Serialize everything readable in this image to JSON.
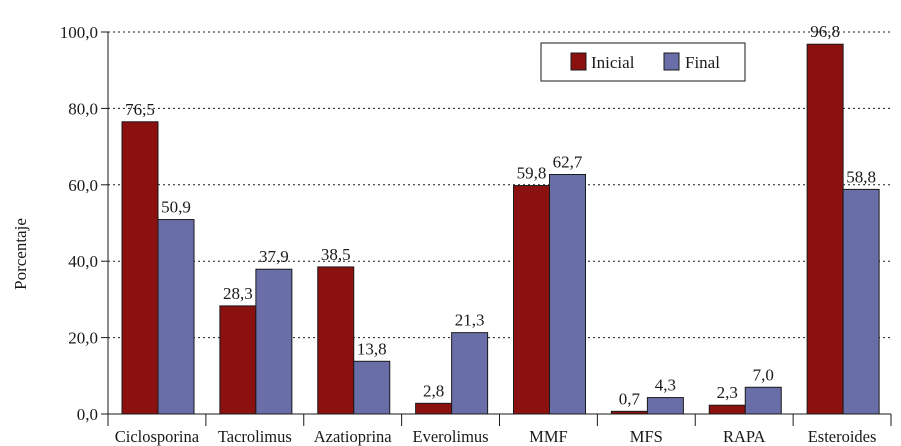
{
  "chart_data": {
    "type": "bar",
    "title": "",
    "xlabel": "",
    "ylabel": "Porcentaje",
    "ylim": [
      0,
      100
    ],
    "yticks": [
      "0,0",
      "20,0",
      "40,0",
      "60,0",
      "80,0",
      "100,0"
    ],
    "grid": "horizontal dotted",
    "legend_position": "top-right",
    "categories": [
      "Ciclosporina",
      "Tacrolimus",
      "Azatioprina",
      "Everolimus",
      "MMF",
      "MFS",
      "RAPA",
      "Esteroides"
    ],
    "series": [
      {
        "name": "Inicial",
        "color": "#8b1010",
        "values": [
          76.5,
          28.3,
          38.5,
          2.8,
          59.8,
          0.7,
          2.3,
          96.8
        ],
        "labels": [
          "76,5",
          "28,3",
          "38,5",
          "2,8",
          "59,8",
          "0,7",
          "2,3",
          "96,8"
        ]
      },
      {
        "name": "Final",
        "color": "#6a6ea8",
        "values": [
          50.9,
          37.9,
          13.8,
          21.3,
          62.7,
          4.3,
          7.0,
          58.8
        ],
        "labels": [
          "50,9",
          "37,9",
          "13,8",
          "21,3",
          "62,7",
          "4,3",
          "7,0",
          "58,8"
        ]
      }
    ]
  }
}
